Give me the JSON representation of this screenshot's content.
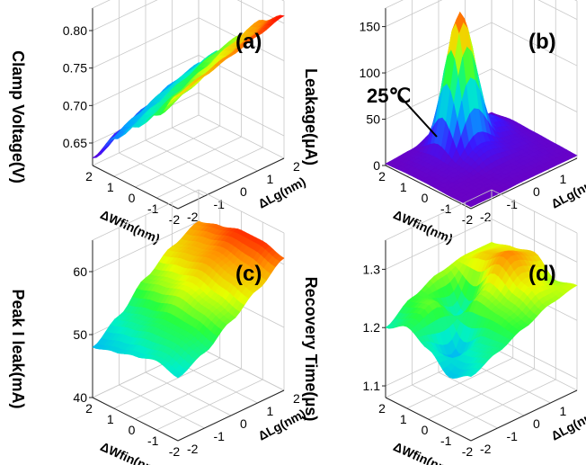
{
  "chart_data": [
    {
      "type": "surface",
      "panel_label": "(a)",
      "zlabel": "Clamp Voltage(V)",
      "xlabel": "ΔWfin(nm)",
      "ylabel": "ΔLg(nm)",
      "x_ticks": [
        "2",
        "1",
        "0",
        "-1",
        "-2"
      ],
      "y_ticks": [
        "-2",
        "-1",
        "0",
        "1",
        "2"
      ],
      "z_ticks": [
        "0.65",
        "0.70",
        "0.75",
        "0.80"
      ],
      "zlim": [
        0.62,
        0.83
      ],
      "x": [
        2,
        1,
        0,
        -1,
        -2
      ],
      "y": [
        -2,
        -1,
        0,
        1,
        2
      ],
      "z": [
        [
          0.77,
          0.78,
          0.79,
          0.8,
          0.81
        ],
        [
          0.73,
          0.745,
          0.76,
          0.775,
          0.79
        ],
        [
          0.7,
          0.715,
          0.73,
          0.745,
          0.755
        ],
        [
          0.67,
          0.685,
          0.7,
          0.71,
          0.72
        ],
        [
          0.63,
          0.65,
          0.665,
          0.68,
          0.69
        ]
      ],
      "annotation": ""
    },
    {
      "type": "surface",
      "panel_label": "(b)",
      "zlabel": "Leakage(μA)",
      "xlabel": "ΔWfin(nm)",
      "ylabel": "ΔLg(nm)",
      "x_ticks": [
        "2",
        "1",
        "0",
        "-1",
        "-2"
      ],
      "y_ticks": [
        "-2",
        "-1",
        "0",
        "1",
        "2"
      ],
      "z_ticks": [
        "0",
        "50",
        "100",
        "150"
      ],
      "zlim": [
        0,
        170
      ],
      "x": [
        2,
        1,
        0,
        -1,
        -2
      ],
      "y": [
        -2,
        -1,
        0,
        1,
        2
      ],
      "z": [
        [
          2,
          2,
          3,
          3,
          3
        ],
        [
          2,
          3,
          5,
          6,
          4
        ],
        [
          3,
          6,
          20,
          10,
          5
        ],
        [
          3,
          8,
          150,
          25,
          6
        ],
        [
          2,
          4,
          15,
          6,
          3
        ]
      ],
      "annotation": "25℃"
    },
    {
      "type": "surface",
      "panel_label": "(c)",
      "zlabel": "Peak I leak(mA)",
      "xlabel": "ΔWfin(nm)",
      "ylabel": "ΔLg(nm)",
      "x_ticks": [
        "2",
        "1",
        "0",
        "-1",
        "-2"
      ],
      "y_ticks": [
        "-2",
        "-1",
        "0",
        "1",
        "2"
      ],
      "z_ticks": [
        "40",
        "50",
        "60"
      ],
      "zlim": [
        40,
        65
      ],
      "x": [
        2,
        1,
        0,
        -1,
        -2
      ],
      "y": [
        -2,
        -1,
        0,
        1,
        2
      ],
      "z": [
        [
          50,
          52,
          55,
          58,
          61
        ],
        [
          51,
          53,
          56,
          59,
          62
        ],
        [
          50,
          53,
          57,
          60,
          62
        ],
        [
          49,
          52,
          56,
          59,
          61
        ],
        [
          48,
          51,
          55,
          58,
          60
        ]
      ],
      "annotation": ""
    },
    {
      "type": "surface",
      "panel_label": "(d)",
      "zlabel": "Recovery Time(μs)",
      "xlabel": "ΔWfin(nm)",
      "ylabel": "ΔLg(nm)",
      "x_ticks": [
        "2",
        "1",
        "0",
        "-1",
        "-2"
      ],
      "y_ticks": [
        "-2",
        "-1",
        "0",
        "1",
        "2"
      ],
      "z_ticks": [
        "1.1",
        "1.2",
        "1.3"
      ],
      "zlim": [
        1.08,
        1.35
      ],
      "x": [
        2,
        1,
        0,
        -1,
        -2
      ],
      "y": [
        -2,
        -1,
        0,
        1,
        2
      ],
      "z": [
        [
          1.19,
          1.21,
          1.23,
          1.25,
          1.26
        ],
        [
          1.17,
          1.2,
          1.24,
          1.27,
          1.25
        ],
        [
          1.2,
          1.16,
          1.25,
          1.3,
          1.28
        ],
        [
          1.22,
          1.24,
          1.19,
          1.28,
          1.27
        ],
        [
          1.2,
          1.23,
          1.25,
          1.26,
          1.26
        ]
      ],
      "annotation": ""
    }
  ],
  "colors": {
    "low": "#7a00c8",
    "mid": "#00e070",
    "high": "#a00000"
  }
}
